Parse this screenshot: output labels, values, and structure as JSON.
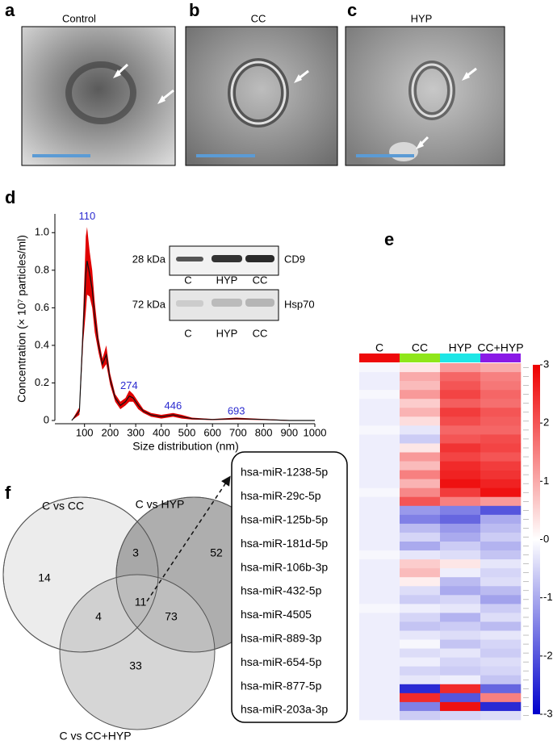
{
  "panel_letters": [
    "a",
    "b",
    "c",
    "d",
    "e",
    "f"
  ],
  "image_titles": [
    "Control",
    "CC",
    "HYP"
  ],
  "chart_data": {
    "type": "line",
    "xlabel": "Size distribution (nm)",
    "ylabel": "Concentration (× 10⁷ particles/ml)",
    "x": [
      50,
      80,
      95,
      105,
      110,
      120,
      130,
      140,
      155,
      170,
      185,
      200,
      220,
      240,
      260,
      275,
      290,
      310,
      330,
      360,
      400,
      446,
      480,
      520,
      600,
      693,
      800,
      900,
      1000
    ],
    "series": [
      {
        "color": "#e00000",
        "line_color": "#111111",
        "values": [
          0,
          0.05,
          0.5,
          0.78,
          0.85,
          0.78,
          0.7,
          0.55,
          0.4,
          0.3,
          0.35,
          0.22,
          0.12,
          0.08,
          0.1,
          0.13,
          0.12,
          0.08,
          0.05,
          0.03,
          0.02,
          0.03,
          0.02,
          0.01,
          0.005,
          0.01,
          0.005,
          0,
          0
        ],
        "errors": [
          0,
          0.02,
          0.08,
          0.2,
          0.18,
          0.12,
          0.1,
          0.08,
          0.04,
          0.03,
          0.05,
          0.03,
          0.02,
          0.02,
          0.02,
          0.03,
          0.02,
          0.02,
          0.01,
          0.01,
          0.01,
          0.01,
          0.01,
          0.005,
          0.003,
          0.005,
          0.003,
          0.002,
          0.002
        ]
      }
    ],
    "annotations": [
      110,
      274,
      446,
      693
    ],
    "annotation_color": "#2a2ad0",
    "xlim": [
      0,
      1000
    ],
    "xticks": [
      100,
      200,
      300,
      400,
      500,
      600,
      700,
      800,
      900,
      1000
    ],
    "ylim": [
      0,
      1.1
    ],
    "yticks": [
      0,
      0.2,
      0.4,
      0.6,
      0.8,
      {
        "value": 1,
        "label": "1.0"
      }
    ]
  },
  "western_blot": [
    {
      "size": "28 kDa",
      "protein": "CD9",
      "lanes": [
        "C",
        "HYP",
        "CC"
      ]
    },
    {
      "size": "72 kDa",
      "protein": "Hsp70",
      "lanes": [
        "C",
        "HYP",
        "CC"
      ]
    }
  ],
  "heatmap": {
    "columns": [
      {
        "label": "C",
        "color": "#ee0a0a"
      },
      {
        "label": "CC",
        "color": "#8fe61a"
      },
      {
        "label": "HYP",
        "color": "#1ee6e6"
      },
      {
        "label": "CC+HYP",
        "color": "#8a1ae6"
      }
    ],
    "scale_ticks": [
      3,
      2,
      1,
      0,
      -1,
      -2,
      -3
    ],
    "rows": [
      [
        -0.1,
        0.3,
        1.2,
        1.0
      ],
      [
        -0.2,
        1.0,
        1.8,
        1.5
      ],
      [
        -0.2,
        0.8,
        2.0,
        1.6
      ],
      [
        -0.1,
        1.2,
        2.2,
        1.8
      ],
      [
        -0.2,
        0.6,
        1.9,
        1.7
      ],
      [
        -0.2,
        0.9,
        2.3,
        2.0
      ],
      [
        -0.2,
        0.4,
        2.1,
        1.9
      ],
      [
        -0.1,
        -0.3,
        1.8,
        1.8
      ],
      [
        -0.2,
        -0.6,
        2.0,
        2.1
      ],
      [
        -0.2,
        0.3,
        2.4,
        2.2
      ],
      [
        -0.2,
        1.2,
        2.2,
        2.0
      ],
      [
        -0.2,
        0.8,
        2.5,
        2.3
      ],
      [
        -0.2,
        1.5,
        2.6,
        2.4
      ],
      [
        -0.2,
        0.9,
        2.8,
        2.6
      ],
      [
        -0.1,
        1.4,
        2.3,
        2.8
      ],
      [
        -0.2,
        2.0,
        1.5,
        1.2
      ],
      [
        -0.2,
        -1.2,
        -1.5,
        -2.0
      ],
      [
        -0.2,
        -1.5,
        -1.8,
        -1.0
      ],
      [
        -0.2,
        -0.8,
        -1.2,
        -0.8
      ],
      [
        -0.2,
        -0.5,
        -1.0,
        -0.6
      ],
      [
        -0.2,
        -1.0,
        -0.6,
        -0.9
      ],
      [
        -0.1,
        -0.3,
        -0.4,
        -0.7
      ],
      [
        -0.2,
        0.6,
        0.3,
        -0.3
      ],
      [
        -0.2,
        0.8,
        -0.2,
        -0.5
      ],
      [
        -0.2,
        0.2,
        -0.8,
        -0.4
      ],
      [
        -0.2,
        -0.4,
        -1.0,
        -0.8
      ],
      [
        -0.2,
        -0.6,
        -0.5,
        -1.1
      ],
      [
        -0.1,
        -0.2,
        -0.3,
        -0.6
      ],
      [
        -0.2,
        -0.5,
        -0.9,
        -0.4
      ],
      [
        -0.2,
        -0.7,
        -0.6,
        -0.8
      ],
      [
        -0.2,
        -0.3,
        -0.4,
        -0.3
      ],
      [
        -0.2,
        -0.1,
        -0.7,
        -0.5
      ],
      [
        -0.2,
        -0.4,
        -0.3,
        -0.6
      ],
      [
        -0.2,
        -0.2,
        -0.5,
        -0.4
      ],
      [
        -0.2,
        -0.5,
        -0.6,
        -0.5
      ],
      [
        -0.2,
        -0.3,
        -0.2,
        -0.7
      ],
      [
        -0.2,
        -2.5,
        2.5,
        -1.8
      ],
      [
        -0.2,
        2.5,
        -2.0,
        1.5
      ],
      [
        -0.2,
        -1.5,
        2.8,
        -2.5
      ],
      [
        -0.2,
        -0.6,
        -0.5,
        -0.4
      ]
    ]
  },
  "venn": {
    "sets": [
      "C vs CC",
      "C vs HYP",
      "C vs CC+HYP"
    ],
    "region_counts": [
      14,
      3,
      52,
      4,
      11,
      73,
      33
    ]
  },
  "mirna_box": [
    "hsa-miR-1238-5p",
    "hsa-miR-29c-5p",
    "hsa-miR-125b-5p",
    "hsa-miR-181d-5p",
    "hsa-miR-106b-3p",
    "hsa-miR-432-5p",
    "hsa-miR-4505",
    "hsa-miR-889-3p",
    "hsa-miR-654-5p",
    "hsa-miR-877-5p",
    "hsa-miR-203a-3p"
  ]
}
